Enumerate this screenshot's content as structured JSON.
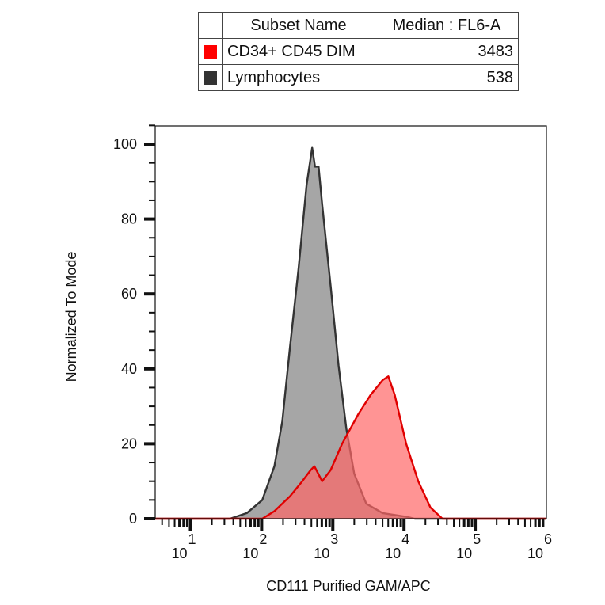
{
  "legend_table": {
    "headers": [
      "",
      "Subset Name",
      "Median : FL6-A"
    ],
    "rows": [
      {
        "name": "CD34+ CD45 DIM",
        "median": "3483",
        "color": "#ff0000"
      },
      {
        "name": "Lymphocytes",
        "median": "538",
        "color": "#333333"
      }
    ]
  },
  "chart_data": {
    "type": "area",
    "xlabel": "CD111 Purified GAM/APC",
    "ylabel": "Normalized To Mode",
    "x_scale": "log",
    "xlim": [
      3.2,
      1000000
    ],
    "ylim": [
      0,
      105
    ],
    "x_tick_labels": [
      {
        "base": "10",
        "exp": "1",
        "value": 10
      },
      {
        "base": "10",
        "exp": "2",
        "value": 100
      },
      {
        "base": "10",
        "exp": "3",
        "value": 1000
      },
      {
        "base": "10",
        "exp": "4",
        "value": 10000
      },
      {
        "base": "10",
        "exp": "5",
        "value": 100000
      },
      {
        "base": "10",
        "exp": "6",
        "value": 1000000
      }
    ],
    "y_ticks": [
      "0",
      "20",
      "40",
      "60",
      "80",
      "100"
    ],
    "grid": false,
    "series": [
      {
        "name": "Lymphocytes",
        "stroke": "#333333",
        "fill": "#a6a6a6",
        "x": [
          36,
          62,
          102,
          151,
          195,
          251,
          331,
          427,
          513,
          562,
          631,
          708,
          933,
          1202,
          1549,
          1995,
          2951,
          5012,
          10715,
          14125
        ],
        "y": [
          0,
          1.5,
          5,
          14,
          26,
          46,
          67,
          89,
          99,
          94,
          94,
          84,
          62,
          41,
          24,
          12,
          4,
          1.5,
          0.5,
          0
        ]
      },
      {
        "name": "CD34+ CD45 DIM",
        "stroke": "#e00000",
        "fill": "#ff6666",
        "x": [
          102,
          151,
          251,
          372,
          490,
          550,
          708,
          933,
          1349,
          2291,
          3388,
          5012,
          6026,
          7413,
          10715,
          15849,
          23442,
          34674
        ],
        "y": [
          0,
          2,
          6,
          10,
          13,
          14,
          10,
          13,
          20,
          28,
          33,
          37,
          38,
          33,
          20,
          10,
          3,
          0
        ]
      }
    ]
  }
}
